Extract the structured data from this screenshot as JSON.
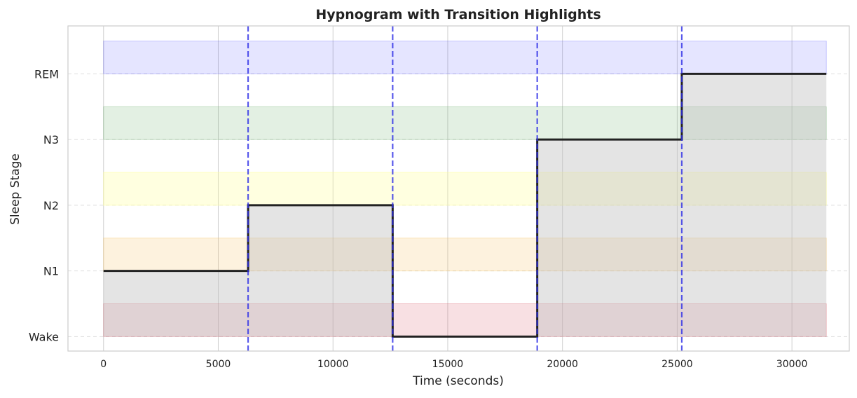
{
  "chart_data": {
    "type": "line",
    "subtype": "step",
    "title": "Hypnogram with Transition Highlights",
    "xlabel": "Time (seconds)",
    "ylabel": "Sleep Stage",
    "xlim": [
      -1550,
      32500
    ],
    "ylim": [
      -0.22,
      4.73
    ],
    "x_ticks": [
      0,
      5000,
      10000,
      15000,
      20000,
      25000,
      30000
    ],
    "x_tick_labels": [
      "0",
      "5000",
      "10000",
      "15000",
      "20000",
      "25000",
      "30000"
    ],
    "y_ticks": [
      0,
      1,
      2,
      3,
      4
    ],
    "y_tick_labels": [
      "Wake",
      "N1",
      "N2",
      "N3",
      "REM"
    ],
    "grid": true,
    "series": [
      {
        "x": [
          0,
          6300,
          12600,
          18900,
          25200,
          31500
        ],
        "y": [
          1,
          2,
          0,
          3,
          4,
          4
        ],
        "color": "#222222"
      }
    ],
    "stage_bands": [
      {
        "stage": "Wake",
        "y0": 0,
        "y1": 0.5,
        "color": "#d6404f",
        "opacity": 0.16
      },
      {
        "stage": "N1",
        "y0": 1,
        "y1": 1.5,
        "color": "#f5c46a",
        "opacity": 0.22
      },
      {
        "stage": "N2",
        "y0": 2,
        "y1": 2.5,
        "color": "#ffff99",
        "opacity": 0.3
      },
      {
        "stage": "N3",
        "y0": 3,
        "y1": 3.5,
        "color": "#66aa66",
        "opacity": 0.18
      },
      {
        "stage": "REM",
        "y0": 4,
        "y1": 4.5,
        "color": "#3333ff",
        "opacity": 0.13
      }
    ],
    "band_x_range": [
      0,
      31500
    ],
    "transitions": [
      6300,
      12600,
      18900,
      25200
    ],
    "transition_color": "#2e2ee6",
    "fill_color": "#bfbfbf"
  }
}
